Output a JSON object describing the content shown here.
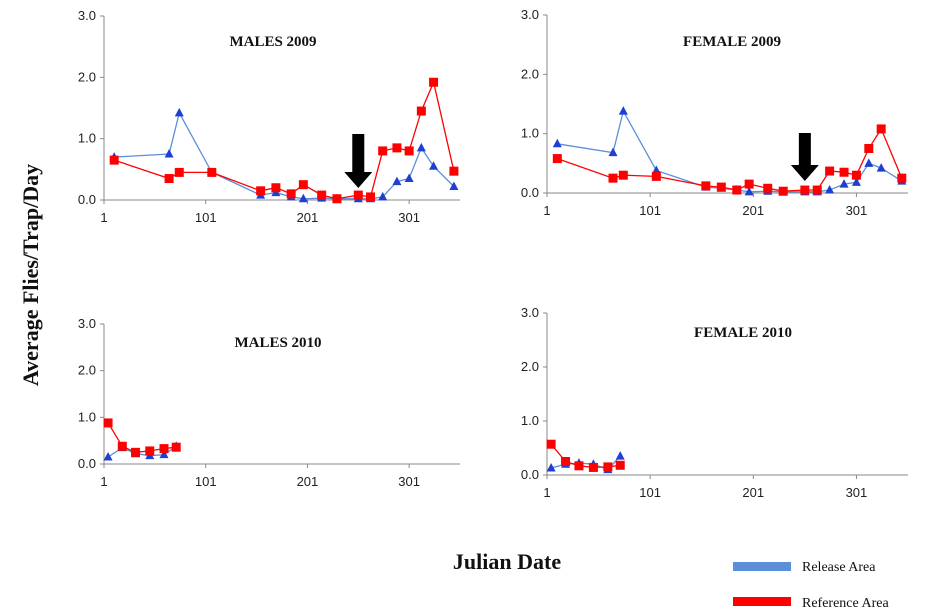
{
  "figure": {
    "ylabel": "Average Flies/Trap/Day",
    "xlabel": "Julian Date"
  },
  "legend": {
    "placement": "bottom-right",
    "items": [
      {
        "label": "Release Area",
        "color": "#5b8fd9"
      },
      {
        "label": "Reference Area",
        "color": "#ff0000"
      }
    ]
  },
  "chart_data": [
    {
      "type": "line",
      "title": "MALES 2009",
      "xlim": [
        1,
        351
      ],
      "ylim": [
        0,
        3
      ],
      "x_ticks": [
        "1",
        "101",
        "201",
        "301"
      ],
      "y_ticks": [
        "0.0",
        "1.0",
        "2.0",
        "3.0"
      ],
      "arrow_at_x": 251,
      "series": [
        {
          "name": "Release Area",
          "color": "#5b8fd9",
          "marker": "triangle",
          "points": [
            [
              11,
              0.7
            ],
            [
              65,
              0.75
            ],
            [
              75,
              1.42
            ],
            [
              107,
              0.45
            ],
            [
              155,
              0.08
            ],
            [
              170,
              0.12
            ],
            [
              185,
              0.05
            ],
            [
              197,
              0.02
            ],
            [
              215,
              0.03
            ],
            [
              230,
              0.02
            ],
            [
              251,
              0.02
            ],
            [
              263,
              0.02
            ],
            [
              275,
              0.05
            ],
            [
              289,
              0.3
            ],
            [
              301,
              0.35
            ],
            [
              313,
              0.85
            ],
            [
              325,
              0.55
            ],
            [
              345,
              0.22
            ]
          ]
        },
        {
          "name": "Reference Area",
          "color": "#ff0000",
          "marker": "square",
          "points": [
            [
              11,
              0.65
            ],
            [
              65,
              0.35
            ],
            [
              75,
              0.45
            ],
            [
              107,
              0.45
            ],
            [
              155,
              0.15
            ],
            [
              170,
              0.2
            ],
            [
              185,
              0.1
            ],
            [
              197,
              0.25
            ],
            [
              215,
              0.08
            ],
            [
              230,
              0.02
            ],
            [
              251,
              0.08
            ],
            [
              263,
              0.05
            ],
            [
              275,
              0.8
            ],
            [
              289,
              0.85
            ],
            [
              301,
              0.8
            ],
            [
              313,
              1.45
            ],
            [
              325,
              1.92
            ],
            [
              345,
              0.47
            ]
          ]
        }
      ]
    },
    {
      "type": "line",
      "title": "FEMALE 2009",
      "xlim": [
        1,
        351
      ],
      "ylim": [
        0,
        3
      ],
      "x_ticks": [
        "1",
        "101",
        "201",
        "301"
      ],
      "y_ticks": [
        "0.0",
        "1.0",
        "2.0",
        "3.0"
      ],
      "arrow_at_x": 251,
      "series": [
        {
          "name": "Release Area",
          "color": "#5b8fd9",
          "marker": "triangle",
          "points": [
            [
              11,
              0.83
            ],
            [
              65,
              0.68
            ],
            [
              75,
              1.38
            ],
            [
              107,
              0.38
            ],
            [
              155,
              0.1
            ],
            [
              170,
              0.08
            ],
            [
              185,
              0.05
            ],
            [
              197,
              0.02
            ],
            [
              215,
              0.03
            ],
            [
              230,
              0.02
            ],
            [
              251,
              0.02
            ],
            [
              263,
              0.02
            ],
            [
              275,
              0.05
            ],
            [
              289,
              0.15
            ],
            [
              301,
              0.18
            ],
            [
              313,
              0.5
            ],
            [
              325,
              0.42
            ],
            [
              345,
              0.2
            ]
          ]
        },
        {
          "name": "Reference Area",
          "color": "#ff0000",
          "marker": "square",
          "points": [
            [
              11,
              0.58
            ],
            [
              65,
              0.25
            ],
            [
              75,
              0.3
            ],
            [
              107,
              0.28
            ],
            [
              155,
              0.12
            ],
            [
              170,
              0.1
            ],
            [
              185,
              0.05
            ],
            [
              197,
              0.15
            ],
            [
              215,
              0.08
            ],
            [
              230,
              0.03
            ],
            [
              251,
              0.05
            ],
            [
              263,
              0.05
            ],
            [
              275,
              0.37
            ],
            [
              289,
              0.35
            ],
            [
              301,
              0.3
            ],
            [
              313,
              0.75
            ],
            [
              325,
              1.08
            ],
            [
              345,
              0.25
            ]
          ]
        }
      ]
    },
    {
      "type": "line",
      "title": "MALES  2010",
      "xlim": [
        1,
        351
      ],
      "ylim": [
        0,
        3
      ],
      "x_ticks": [
        "1",
        "101",
        "201",
        "301"
      ],
      "y_ticks": [
        "0.0",
        "1.0",
        "2.0",
        "3.0"
      ],
      "series": [
        {
          "name": "Release Area",
          "color": "#5b8fd9",
          "marker": "triangle",
          "points": [
            [
              5,
              0.15
            ],
            [
              19,
              0.35
            ],
            [
              32,
              0.22
            ],
            [
              46,
              0.18
            ],
            [
              60,
              0.2
            ],
            [
              72,
              0.38
            ]
          ]
        },
        {
          "name": "Reference Area",
          "color": "#ff0000",
          "marker": "square",
          "points": [
            [
              5,
              0.88
            ],
            [
              19,
              0.38
            ],
            [
              32,
              0.25
            ],
            [
              46,
              0.28
            ],
            [
              60,
              0.33
            ],
            [
              72,
              0.36
            ]
          ]
        }
      ]
    },
    {
      "type": "line",
      "title": "FEMALE  2010",
      "xlim": [
        1,
        351
      ],
      "ylim": [
        0,
        3
      ],
      "x_ticks": [
        "1",
        "101",
        "201",
        "301"
      ],
      "y_ticks": [
        "0.0",
        "1.0",
        "2.0",
        "3.0"
      ],
      "series": [
        {
          "name": "Release Area",
          "color": "#5b8fd9",
          "marker": "triangle",
          "points": [
            [
              5,
              0.13
            ],
            [
              19,
              0.2
            ],
            [
              32,
              0.22
            ],
            [
              46,
              0.2
            ],
            [
              60,
              0.1
            ],
            [
              72,
              0.35
            ]
          ]
        },
        {
          "name": "Reference Area",
          "color": "#ff0000",
          "marker": "square",
          "points": [
            [
              5,
              0.57
            ],
            [
              19,
              0.25
            ],
            [
              32,
              0.17
            ],
            [
              46,
              0.14
            ],
            [
              60,
              0.15
            ],
            [
              72,
              0.18
            ]
          ]
        }
      ]
    }
  ]
}
